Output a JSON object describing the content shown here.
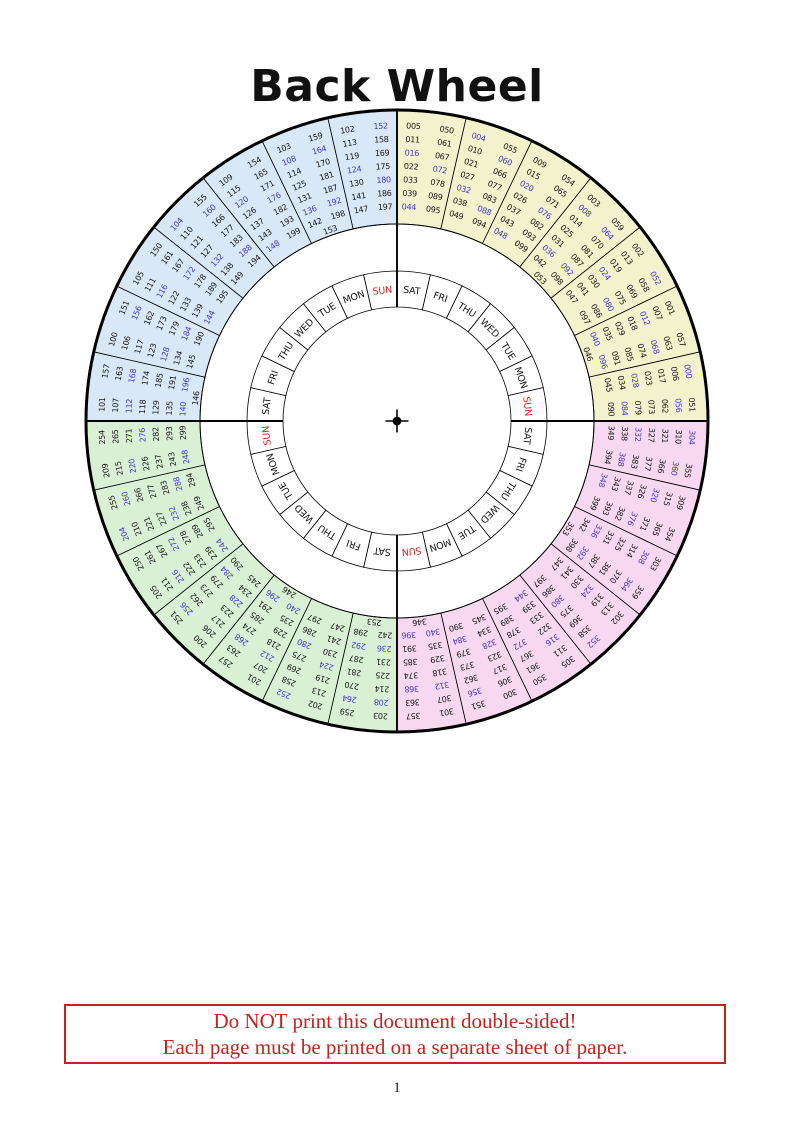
{
  "title": "Back Wheel",
  "page_number": "1",
  "warning": {
    "line1": "Do NOT print this document double-sided!",
    "line2": "Each page must be printed on a separate sheet of paper."
  },
  "wheel": {
    "sun_label": "SUN",
    "day_cells": [
      "SAT",
      "FRI",
      "THU",
      "WED",
      "TUE",
      "MON",
      "SUN",
      "SAT",
      "FRI",
      "THU",
      "WED",
      "TUE",
      "MON",
      "SUN",
      "SAT",
      "FRI",
      "THU",
      "WED",
      "TUE",
      "MON",
      "SUN",
      "SAT",
      "FRI",
      "THU",
      "WED",
      "TUE",
      "MON",
      "SUN"
    ],
    "colors": {
      "yellow": "#f2f2cc",
      "blue": "#d9e8f6",
      "green": "#d9f0d5",
      "pink": "#f7d8f0",
      "leap_text": "#4637c4",
      "sun_text": "#cd2a24",
      "ink": "#161616",
      "warning_red": "#c3231e"
    },
    "leap_rule": {
      "divisor": 4,
      "black_exceptions": [
        "100",
        "200",
        "300"
      ]
    },
    "sectors": [
      {
        "quadrant": "yellow",
        "col1": [
          "005",
          "011",
          "016",
          "022",
          "033",
          "039",
          "044"
        ],
        "col2": [
          "050",
          "061",
          "067",
          "072",
          "078",
          "089",
          "095"
        ]
      },
      {
        "quadrant": "yellow",
        "col1": [
          "004",
          "010",
          "021",
          "027",
          "032",
          "038",
          "049"
        ],
        "col2": [
          "055",
          "060",
          "066",
          "077",
          "083",
          "088",
          "094"
        ]
      },
      {
        "quadrant": "yellow",
        "col1": [
          "009",
          "015",
          "020",
          "026",
          "037",
          "043",
          "048"
        ],
        "col2": [
          "054",
          "065",
          "071",
          "076",
          "082",
          "093",
          "099"
        ]
      },
      {
        "quadrant": "yellow",
        "col1": [
          "003",
          "008",
          "014",
          "025",
          "031",
          "036",
          "042",
          "053"
        ],
        "col2": [
          "059",
          "064",
          "070",
          "081",
          "087",
          "092",
          "098"
        ]
      },
      {
        "quadrant": "yellow",
        "col1": [
          "002",
          "013",
          "019",
          "024",
          "030",
          "041",
          "047"
        ],
        "col2": [
          "052",
          "058",
          "069",
          "075",
          "080",
          "086",
          "097"
        ]
      },
      {
        "quadrant": "yellow",
        "col1": [
          "001",
          "007",
          "012",
          "018",
          "029",
          "035",
          "040",
          "046"
        ],
        "col2": [
          "057",
          "063",
          "068",
          "074",
          "085",
          "091",
          "096"
        ]
      },
      {
        "quadrant": "yellow",
        "col1": [
          "000",
          "006",
          "017",
          "023",
          "028",
          "034",
          "045"
        ],
        "col2": [
          "051",
          "056",
          "062",
          "073",
          "079",
          "084",
          "090"
        ]
      },
      {
        "quadrant": "pink",
        "col1": [
          "304",
          "310",
          "321",
          "327",
          "332",
          "338",
          "349"
        ],
        "col2": [
          "355",
          "360",
          "366",
          "377",
          "383",
          "388",
          "394"
        ]
      },
      {
        "quadrant": "pink",
        "col1": [
          "309",
          "315",
          "320",
          "326",
          "337",
          "343",
          "348"
        ],
        "col2": [
          "354",
          "365",
          "371",
          "376",
          "382",
          "393",
          "399"
        ]
      },
      {
        "quadrant": "pink",
        "col1": [
          "303",
          "308",
          "314",
          "325",
          "331",
          "336",
          "342",
          "353"
        ],
        "col2": [
          "359",
          "364",
          "370",
          "381",
          "387",
          "392",
          "398"
        ]
      },
      {
        "quadrant": "pink",
        "col1": [
          "302",
          "313",
          "319",
          "324",
          "330",
          "341",
          "347"
        ],
        "col2": [
          "352",
          "358",
          "369",
          "375",
          "380",
          "386",
          "397"
        ]
      },
      {
        "quadrant": "pink",
        "col1": [
          "305",
          "311",
          "316",
          "322",
          "333",
          "339",
          "344"
        ],
        "col2": [
          "350",
          "361",
          "367",
          "372",
          "378",
          "389",
          "395"
        ]
      },
      {
        "quadrant": "pink",
        "col1": [
          "300",
          "306",
          "317",
          "323",
          "328",
          "334",
          "345"
        ],
        "col2": [
          "351",
          "356",
          "362",
          "373",
          "379",
          "384",
          "390"
        ]
      },
      {
        "quadrant": "pink",
        "col1": [
          "301",
          "307",
          "312",
          "318",
          "329",
          "335",
          "340",
          "346"
        ],
        "col2": [
          "357",
          "363",
          "368",
          "374",
          "385",
          "391",
          "396"
        ]
      },
      {
        "quadrant": "green",
        "col1": [
          "203",
          "208",
          "214",
          "225",
          "231",
          "236",
          "242",
          "253"
        ],
        "col2": [
          "259",
          "264",
          "270",
          "281",
          "287",
          "292",
          "298"
        ]
      },
      {
        "quadrant": "green",
        "col1": [
          "202",
          "213",
          "219",
          "224",
          "230",
          "241",
          "247"
        ],
        "col2": [
          "252",
          "258",
          "269",
          "275",
          "280",
          "286",
          "297"
        ]
      },
      {
        "quadrant": "green",
        "col1": [
          "201",
          "207",
          "212",
          "218",
          "229",
          "235",
          "240",
          "246"
        ],
        "col2": [
          "257",
          "263",
          "268",
          "274",
          "285",
          "291",
          "296"
        ]
      },
      {
        "quadrant": "green",
        "col1": [
          "200",
          "206",
          "217",
          "223",
          "228",
          "234",
          "245"
        ],
        "col2": [
          "251",
          "256",
          "262",
          "273",
          "279",
          "284",
          "290"
        ]
      },
      {
        "quadrant": "green",
        "col1": [
          "205",
          "211",
          "216",
          "222",
          "233",
          "239",
          "244"
        ],
        "col2": [
          "250",
          "261",
          "267",
          "272",
          "278",
          "289",
          "295"
        ]
      },
      {
        "quadrant": "green",
        "col1": [
          "204",
          "210",
          "221",
          "227",
          "232",
          "238",
          "249"
        ],
        "col2": [
          "255",
          "260",
          "266",
          "277",
          "283",
          "288",
          "294"
        ]
      },
      {
        "quadrant": "green",
        "col1": [
          "209",
          "215",
          "220",
          "226",
          "237",
          "243",
          "248"
        ],
        "col2": [
          "254",
          "265",
          "271",
          "276",
          "282",
          "293",
          "299"
        ]
      },
      {
        "quadrant": "blue",
        "col1": [
          "101",
          "107",
          "112",
          "118",
          "129",
          "135",
          "140",
          "146"
        ],
        "col2": [
          "157",
          "163",
          "168",
          "174",
          "185",
          "191",
          "196"
        ]
      },
      {
        "quadrant": "blue",
        "col1": [
          "100",
          "106",
          "117",
          "123",
          "128",
          "134",
          "145"
        ],
        "col2": [
          "151",
          "156",
          "162",
          "173",
          "179",
          "184",
          "190"
        ]
      },
      {
        "quadrant": "blue",
        "col1": [
          "105",
          "111",
          "116",
          "122",
          "133",
          "139",
          "144"
        ],
        "col2": [
          "150",
          "161",
          "167",
          "172",
          "178",
          "189",
          "195"
        ]
      },
      {
        "quadrant": "blue",
        "col1": [
          "104",
          "110",
          "121",
          "127",
          "132",
          "138",
          "149"
        ],
        "col2": [
          "155",
          "160",
          "166",
          "177",
          "183",
          "188",
          "194"
        ]
      },
      {
        "quadrant": "blue",
        "col1": [
          "109",
          "115",
          "120",
          "126",
          "137",
          "143",
          "148"
        ],
        "col2": [
          "154",
          "165",
          "171",
          "176",
          "182",
          "193",
          "199"
        ]
      },
      {
        "quadrant": "blue",
        "col1": [
          "103",
          "108",
          "114",
          "125",
          "131",
          "136",
          "142",
          "153"
        ],
        "col2": [
          "159",
          "164",
          "170",
          "181",
          "187",
          "192",
          "198"
        ]
      },
      {
        "quadrant": "blue",
        "col1": [
          "102",
          "113",
          "119",
          "124",
          "130",
          "141",
          "147"
        ],
        "col2": [
          "152",
          "158",
          "169",
          "175",
          "180",
          "186",
          "197"
        ]
      }
    ]
  }
}
